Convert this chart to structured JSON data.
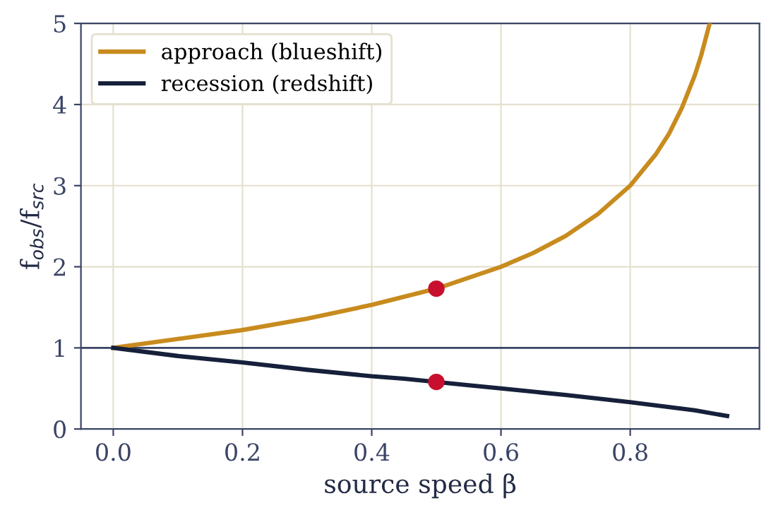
{
  "chart_data": {
    "type": "line",
    "xlabel": "source speed β",
    "ylabel": "f$_{obs}$/f$_{src}$",
    "xlim": [
      -0.05,
      1.0
    ],
    "ylim": [
      0,
      5
    ],
    "xticks": [
      {
        "value": 0,
        "label": "0.0"
      },
      0.2,
      0.4,
      0.6,
      0.8
    ],
    "yticks": [
      0,
      1,
      2,
      3,
      4,
      5
    ],
    "grid": true,
    "legend": "top left",
    "marker": "none",
    "line_style": "solid",
    "ref_lines": [
      {
        "axis": "y",
        "value": 1,
        "color": "#3a4466"
      }
    ],
    "series": [
      {
        "name": "approach (blueshift)",
        "color": "#c88b1e",
        "x": [
          0,
          0.1,
          0.2,
          0.3,
          0.4,
          0.5,
          0.6,
          0.65,
          0.7,
          0.75,
          0.8,
          0.84,
          0.86,
          0.88,
          0.9,
          0.91,
          0.923
        ],
        "values": [
          1.0,
          1.11,
          1.22,
          1.36,
          1.53,
          1.73,
          2.0,
          2.17,
          2.38,
          2.65,
          3.0,
          3.39,
          3.64,
          3.96,
          4.36,
          4.61,
          5.0
        ]
      },
      {
        "name": "recession (redshift)",
        "color": "#16203a",
        "x": [
          0,
          0.1,
          0.2,
          0.3,
          0.4,
          0.45,
          0.55,
          0.6,
          0.7,
          0.8,
          0.85,
          0.9,
          0.95
        ],
        "values": [
          1.0,
          0.9,
          0.82,
          0.73,
          0.65,
          0.62,
          0.54,
          0.5,
          0.42,
          0.33,
          0.28,
          0.23,
          0.16
        ]
      },
      {
        "type": "scatter",
        "color": "#c8102e",
        "marker": "circle",
        "x": [
          0.5,
          0.5
        ],
        "values": [
          1.73,
          0.58
        ]
      }
    ]
  }
}
